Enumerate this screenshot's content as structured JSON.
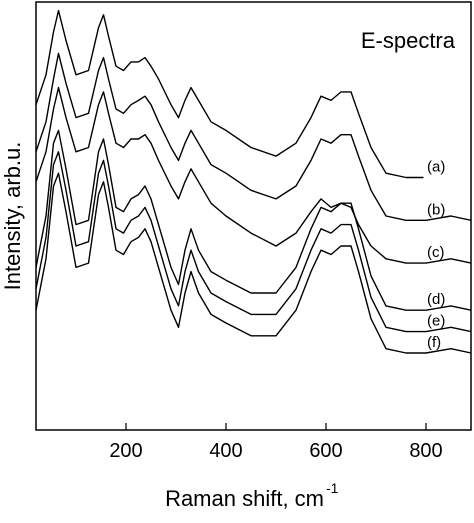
{
  "chart_data": {
    "type": "line",
    "title": "E-spectra",
    "xlabel": "Raman shift, cm",
    "xlabel_sup": "-1",
    "ylabel": "Intensity, arb.u.",
    "xlim": [
      20,
      890
    ],
    "ylim": [
      0,
      100
    ],
    "x_ticks": [
      200,
      400,
      600,
      800
    ],
    "y_ticks": [],
    "grid": false,
    "legend": "none",
    "line_color": "#000000",
    "series": [
      {
        "name": "(a)",
        "x": [
          20,
          40,
          55,
          65,
          80,
          100,
          125,
          145,
          155,
          165,
          180,
          195,
          210,
          225,
          238,
          250,
          265,
          290,
          305,
          318,
          330,
          345,
          370,
          400,
          450,
          500,
          540,
          570,
          590,
          610,
          630,
          650,
          665,
          690,
          720,
          760,
          795
        ],
        "y": [
          76,
          83,
          93,
          98,
          91,
          83,
          84,
          94,
          97,
          92,
          85,
          84,
          86,
          86,
          87,
          85,
          82,
          76,
          73,
          77,
          80,
          77,
          72,
          70,
          66,
          64,
          67,
          73,
          78,
          77,
          79,
          79,
          74,
          66,
          60,
          59,
          59
        ]
      },
      {
        "name": "(b)",
        "x": [
          20,
          40,
          55,
          65,
          80,
          100,
          125,
          145,
          155,
          165,
          180,
          195,
          210,
          225,
          238,
          250,
          265,
          290,
          305,
          318,
          330,
          345,
          370,
          400,
          450,
          500,
          540,
          570,
          590,
          610,
          630,
          650,
          665,
          690,
          720,
          760,
          800,
          850,
          890
        ],
        "y": [
          65,
          72,
          82,
          88,
          81,
          73,
          74,
          84,
          87,
          82,
          75,
          74,
          76,
          77,
          78,
          76,
          72,
          66,
          63,
          67,
          70,
          67,
          62,
          60,
          56,
          54,
          57,
          63,
          68,
          67,
          69,
          69,
          64,
          56,
          50,
          49,
          49,
          50,
          49
        ]
      },
      {
        "name": "(c)",
        "x": [
          20,
          40,
          55,
          65,
          80,
          100,
          125,
          145,
          155,
          165,
          180,
          195,
          210,
          225,
          238,
          250,
          265,
          290,
          305,
          318,
          330,
          345,
          370,
          400,
          450,
          500,
          540,
          570,
          590,
          610,
          630,
          650,
          665,
          690,
          720,
          760,
          800,
          850,
          890
        ],
        "y": [
          58,
          65,
          75,
          80,
          73,
          65,
          66,
          76,
          79,
          74,
          67,
          66,
          68,
          68,
          69,
          67,
          63,
          57,
          54,
          58,
          61,
          58,
          53,
          50,
          46,
          43,
          46,
          51,
          54,
          52,
          53,
          52,
          48,
          43,
          40,
          39,
          39,
          40,
          39
        ]
      },
      {
        "name": "(d)",
        "x": [
          20,
          40,
          55,
          65,
          80,
          100,
          125,
          145,
          155,
          165,
          180,
          195,
          210,
          225,
          238,
          250,
          265,
          290,
          305,
          318,
          330,
          345,
          370,
          400,
          450,
          500,
          540,
          570,
          590,
          610,
          630,
          650,
          665,
          690,
          720,
          760,
          800,
          850,
          890
        ],
        "y": [
          38,
          50,
          67,
          70,
          61,
          48,
          49,
          65,
          68,
          62,
          52,
          51,
          54,
          55,
          57,
          54,
          48,
          38,
          34,
          42,
          47,
          42,
          37,
          35,
          32,
          32,
          38,
          47,
          52,
          51,
          53,
          53,
          47,
          36,
          29,
          28,
          28,
          29,
          28
        ]
      },
      {
        "name": "(e)",
        "x": [
          20,
          40,
          55,
          65,
          80,
          100,
          125,
          145,
          155,
          165,
          180,
          195,
          210,
          225,
          238,
          250,
          265,
          290,
          305,
          318,
          330,
          345,
          370,
          400,
          450,
          500,
          540,
          570,
          590,
          610,
          630,
          650,
          665,
          690,
          720,
          760,
          800,
          850,
          890
        ],
        "y": [
          33,
          45,
          62,
          65,
          56,
          43,
          44,
          60,
          63,
          57,
          47,
          46,
          49,
          50,
          52,
          49,
          43,
          33,
          29,
          37,
          42,
          37,
          32,
          30,
          27,
          27,
          33,
          42,
          47,
          46,
          48,
          48,
          42,
          31,
          24,
          23,
          23,
          24,
          23
        ]
      },
      {
        "name": "(f)",
        "x": [
          20,
          40,
          55,
          65,
          80,
          100,
          125,
          145,
          155,
          165,
          180,
          195,
          210,
          225,
          238,
          250,
          265,
          290,
          305,
          318,
          330,
          345,
          370,
          400,
          450,
          500,
          540,
          570,
          590,
          610,
          630,
          650,
          665,
          690,
          720,
          760,
          800,
          850,
          890
        ],
        "y": [
          28,
          40,
          57,
          60,
          51,
          38,
          39,
          55,
          58,
          52,
          42,
          41,
          44,
          45,
          47,
          44,
          38,
          28,
          24,
          32,
          37,
          32,
          27,
          25,
          22,
          22,
          28,
          37,
          42,
          41,
          43,
          43,
          37,
          26,
          19,
          18,
          18,
          19,
          18
        ]
      }
    ]
  }
}
